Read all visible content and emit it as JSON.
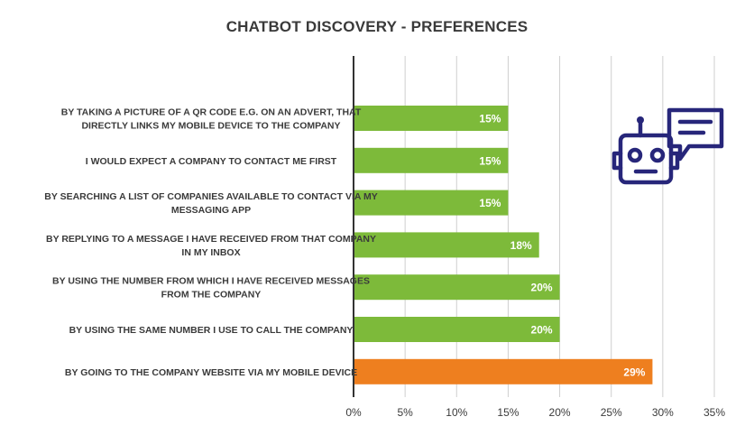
{
  "chart_data": {
    "type": "bar",
    "orientation": "horizontal",
    "title": "CHATBOT DISCOVERY - PREFERENCES",
    "categories": [
      [
        "BY TAKING A PICTURE OF A QR CODE E.G. ON AN ADVERT, THAT",
        "DIRECTLY LINKS MY MOBILE DEVICE TO THE COMPANY"
      ],
      [
        "I WOULD EXPECT A COMPANY TO CONTACT ME FIRST"
      ],
      [
        "BY SEARCHING A LIST OF COMPANIES AVAILABLE TO CONTACT VIA MY",
        "MESSAGING APP"
      ],
      [
        "BY REPLYING TO A MESSAGE I HAVE RECEIVED FROM THAT COMPANY",
        "IN MY INBOX"
      ],
      [
        "BY USING THE NUMBER FROM WHICH I HAVE RECEIVED MESSAGES",
        "FROM THE COMPANY"
      ],
      [
        "BY USING THE SAME NUMBER I USE TO CALL THE COMPANY"
      ],
      [
        "BY GOING TO THE COMPANY WEBSITE VIA MY MOBILE DEVICE"
      ]
    ],
    "values": [
      15,
      15,
      15,
      18,
      20,
      20,
      29
    ],
    "value_labels": [
      "15%",
      "15%",
      "15%",
      "18%",
      "20%",
      "20%",
      "29%"
    ],
    "bar_colors": [
      "#7dba3a",
      "#7dba3a",
      "#7dba3a",
      "#7dba3a",
      "#7dba3a",
      "#7dba3a",
      "#ee7f1f"
    ],
    "xlim": [
      0,
      35
    ],
    "xticks": [
      0,
      5,
      10,
      15,
      20,
      25,
      30,
      35
    ],
    "xtick_labels": [
      "0%",
      "5%",
      "10%",
      "15%",
      "20%",
      "25%",
      "30%",
      "35%"
    ],
    "grid": "vertical",
    "xlabel": "",
    "ylabel": ""
  },
  "icon": {
    "name": "chatbot-icon",
    "color": "#27267a"
  }
}
